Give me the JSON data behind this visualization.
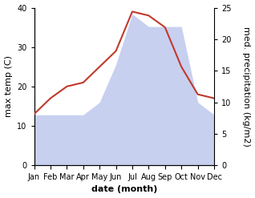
{
  "months": [
    "Jan",
    "Feb",
    "Mar",
    "Apr",
    "May",
    "Jun",
    "Jul",
    "Aug",
    "Sep",
    "Oct",
    "Nov",
    "Dec"
  ],
  "max_temp": [
    13,
    17,
    20,
    21,
    25,
    29,
    39,
    38,
    35,
    25,
    18,
    17
  ],
  "precipitation": [
    8,
    8,
    8,
    8,
    10,
    16,
    24,
    22,
    22,
    22,
    10,
    8
  ],
  "temp_color": "#c0392b",
  "precip_color_fill": "#c8d0f0",
  "temp_ylim": [
    0,
    40
  ],
  "precip_ylim": [
    0,
    25
  ],
  "temp_yticks": [
    0,
    10,
    20,
    30,
    40
  ],
  "precip_yticks": [
    0,
    5,
    10,
    15,
    20,
    25
  ],
  "xlabel": "date (month)",
  "ylabel_left": "max temp (C)",
  "ylabel_right": "med. precipitation (kg/m2)",
  "background_color": "#ffffff",
  "label_fontsize": 8,
  "tick_fontsize": 7
}
